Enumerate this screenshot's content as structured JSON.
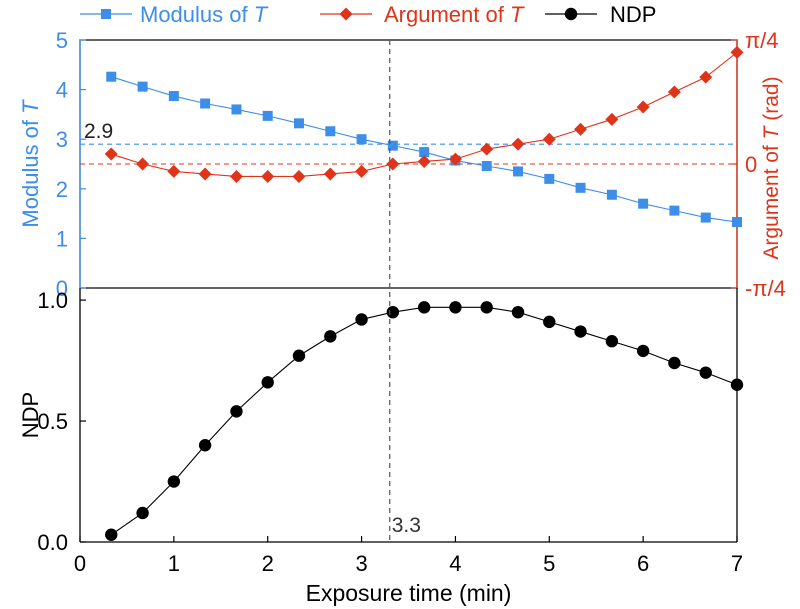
{
  "legend": [
    {
      "label_prefix": "Modulus of ",
      "label_italic": "T",
      "color": "#3d8ee8",
      "marker": "square"
    },
    {
      "label_prefix": "Argument of ",
      "label_italic": "T",
      "color": "#e0341a",
      "marker": "diamond"
    },
    {
      "label_prefix": "NDP",
      "label_italic": "",
      "color": "#000000",
      "marker": "circle"
    }
  ],
  "colors": {
    "modulus": "#3d8ee8",
    "argument": "#e0341a",
    "ndp": "#000000"
  },
  "chart_data": [
    {
      "type": "line",
      "panel": "top",
      "xlim": [
        0,
        7
      ],
      "ylim_left": [
        0,
        5
      ],
      "ylim_right": [
        -0.785398,
        0.785398
      ],
      "left_axis_label_prefix": "Modulus of ",
      "left_axis_label_italic": "T",
      "right_axis_label_prefix": "Argument of ",
      "right_axis_label_italic": "T",
      "right_axis_label_suffix": " (rad)",
      "left_ticks": [
        "0",
        "1",
        "2",
        "3",
        "4",
        "5"
      ],
      "right_ticks": [
        {
          "value": -0.785398,
          "label": "-π/4"
        },
        {
          "value": 0,
          "label": "0"
        },
        {
          "value": 0.785398,
          "label": "π/4"
        }
      ],
      "series": [
        {
          "name": "Modulus of T",
          "axis": "left",
          "marker": "square",
          "x": [
            0.333,
            0.667,
            1.0,
            1.333,
            1.667,
            2.0,
            2.333,
            2.667,
            3.0,
            3.333,
            3.667,
            4.0,
            4.333,
            4.667,
            5.0,
            5.333,
            5.667,
            6.0,
            6.333,
            6.667,
            7.0
          ],
          "y": [
            4.26,
            4.06,
            3.87,
            3.72,
            3.6,
            3.47,
            3.32,
            3.16,
            3.0,
            2.87,
            2.74,
            2.57,
            2.46,
            2.35,
            2.2,
            2.02,
            1.88,
            1.7,
            1.56,
            1.42,
            1.33
          ]
        },
        {
          "name": "Argument of T",
          "axis": "right",
          "marker": "diamond",
          "x": [
            0.333,
            0.667,
            1.0,
            1.333,
            1.667,
            2.0,
            2.333,
            2.667,
            3.0,
            3.333,
            3.667,
            4.0,
            4.333,
            4.667,
            5.0,
            5.333,
            5.667,
            6.0,
            6.333,
            6.667,
            7.0
          ],
          "y": [
            0.063,
            0.0,
            -0.047,
            -0.063,
            -0.079,
            -0.079,
            -0.079,
            -0.063,
            -0.047,
            0.0,
            0.016,
            0.031,
            0.094,
            0.126,
            0.157,
            0.22,
            0.283,
            0.361,
            0.456,
            0.55,
            0.707
          ]
        }
      ],
      "reference_lines": [
        {
          "orientation": "horizontal",
          "axis": "left",
          "value": 2.9,
          "color": "#3d8ee8",
          "style": "dashed",
          "label": "2.9"
        },
        {
          "orientation": "horizontal",
          "axis": "right",
          "value": 0,
          "color": "#e0341a",
          "style": "dashed"
        },
        {
          "orientation": "vertical",
          "value": 3.3,
          "color": "#555555",
          "style": "dashed"
        }
      ]
    },
    {
      "type": "line",
      "panel": "bottom",
      "xlim": [
        0,
        7
      ],
      "ylim": [
        0,
        1.05
      ],
      "ylabel": "NDP",
      "xlabel": "Exposure time (min)",
      "y_ticks": [
        "0.0",
        "0.5",
        "1.0"
      ],
      "x_ticks": [
        "0",
        "1",
        "2",
        "3",
        "4",
        "5",
        "6",
        "7"
      ],
      "series": [
        {
          "name": "NDP",
          "marker": "circle",
          "x": [
            0.333,
            0.667,
            1.0,
            1.333,
            1.667,
            2.0,
            2.333,
            2.667,
            3.0,
            3.333,
            3.667,
            4.0,
            4.333,
            4.667,
            5.0,
            5.333,
            5.667,
            6.0,
            6.333,
            6.667,
            7.0
          ],
          "y": [
            0.03,
            0.12,
            0.25,
            0.4,
            0.54,
            0.66,
            0.77,
            0.85,
            0.92,
            0.95,
            0.97,
            0.97,
            0.97,
            0.95,
            0.91,
            0.87,
            0.83,
            0.79,
            0.74,
            0.7,
            0.65
          ]
        }
      ],
      "reference_lines": [
        {
          "orientation": "vertical",
          "value": 3.3,
          "color": "#555555",
          "style": "dashed",
          "label": "3.3"
        }
      ]
    }
  ]
}
